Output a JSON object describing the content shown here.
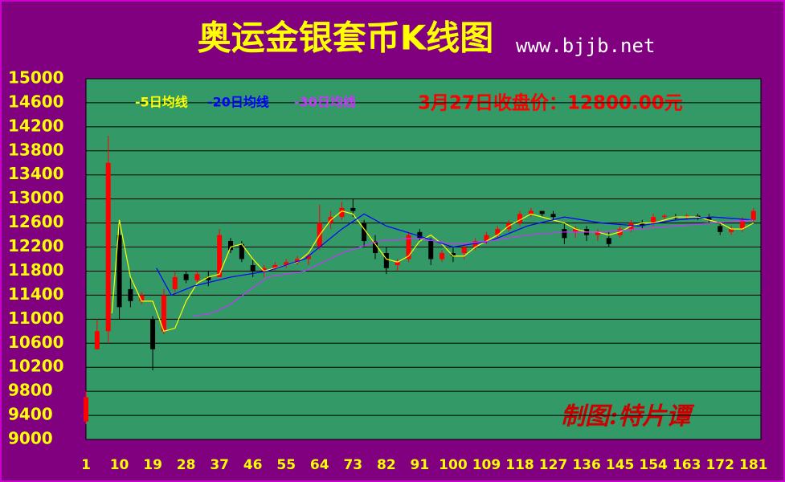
{
  "chart_data": {
    "type": "candlestick",
    "title": "奥运金银套币K线图",
    "subtitle": "www.bjjb.net",
    "annotation": "3月27日收盘价：12800.00元",
    "watermark": "制图:特片谭",
    "up_color": "#ff0000",
    "down_color": "#000000",
    "background": "#800080",
    "plot_color": "#339966",
    "grid": true,
    "xlim": [
      1,
      183
    ],
    "ylim": [
      9000,
      15000
    ],
    "xticks": [
      1,
      10,
      19,
      28,
      37,
      46,
      55,
      64,
      73,
      82,
      91,
      100,
      109,
      118,
      127,
      136,
      145,
      154,
      163,
      172,
      181
    ],
    "yticks": [
      9000,
      9400,
      9800,
      10200,
      10600,
      11000,
      11400,
      11800,
      12200,
      12600,
      13000,
      13400,
      13800,
      14200,
      14600,
      15000
    ],
    "candles": {
      "x": [
        1,
        4,
        7,
        10,
        13,
        16,
        19,
        22,
        25,
        28,
        31,
        34,
        37,
        40,
        43,
        46,
        49,
        52,
        55,
        58,
        61,
        64,
        67,
        70,
        73,
        76,
        79,
        82,
        85,
        88,
        91,
        94,
        97,
        100,
        103,
        106,
        109,
        112,
        115,
        118,
        121,
        124,
        127,
        130,
        133,
        136,
        139,
        142,
        145,
        148,
        151,
        154,
        157,
        160,
        163,
        166,
        169,
        172,
        175,
        178,
        181
      ],
      "open": [
        9300,
        10500,
        10800,
        12400,
        11500,
        11300,
        11000,
        10800,
        11500,
        11750,
        11650,
        11700,
        11700,
        12300,
        12250,
        11900,
        11800,
        11850,
        11900,
        11950,
        12000,
        12200,
        12600,
        12700,
        12850,
        12600,
        12300,
        12100,
        11900,
        12000,
        12450,
        12300,
        12000,
        12100,
        12100,
        12200,
        12300,
        12400,
        12500,
        12600,
        12750,
        12800,
        12750,
        12500,
        12450,
        12500,
        12400,
        12350,
        12400,
        12500,
        12600,
        12600,
        12700,
        12700,
        12700,
        12720,
        12700,
        12550,
        12450,
        12500,
        12650
      ],
      "high": [
        9800,
        11000,
        14050,
        12600,
        11700,
        11450,
        11050,
        11500,
        11800,
        11800,
        11800,
        11800,
        12500,
        12350,
        12300,
        12000,
        11900,
        11950,
        12000,
        12050,
        12100,
        12900,
        12800,
        12950,
        13000,
        12650,
        12400,
        12200,
        12000,
        12450,
        12500,
        12350,
        12150,
        12200,
        12250,
        12350,
        12450,
        12550,
        12650,
        12800,
        12850,
        12800,
        12800,
        12600,
        12550,
        12550,
        12500,
        12450,
        12550,
        12650,
        12650,
        12750,
        12750,
        12750,
        12750,
        12750,
        12750,
        12600,
        12550,
        12700,
        12850
      ],
      "low": [
        9250,
        10500,
        10600,
        11000,
        11200,
        11250,
        10150,
        10750,
        11450,
        11600,
        11600,
        11550,
        11700,
        12100,
        11950,
        11700,
        11700,
        11800,
        11850,
        11900,
        11900,
        12150,
        12500,
        12650,
        12700,
        12200,
        12000,
        11750,
        11800,
        11950,
        12300,
        11900,
        11950,
        11950,
        12000,
        12150,
        12250,
        12350,
        12450,
        12550,
        12700,
        12700,
        12650,
        12250,
        12350,
        12300,
        12300,
        12200,
        12350,
        12450,
        12500,
        12550,
        12650,
        12650,
        12650,
        12650,
        12600,
        12400,
        12400,
        12450,
        12600
      ],
      "close": [
        9700,
        10800,
        13600,
        11200,
        11300,
        11400,
        10500,
        11400,
        11700,
        11650,
        11750,
        11650,
        12400,
        12150,
        12000,
        11800,
        11850,
        11900,
        11950,
        12000,
        12050,
        12600,
        12700,
        12850,
        12800,
        12300,
        12100,
        11850,
        11950,
        12400,
        12350,
        12000,
        12100,
        12050,
        12200,
        12300,
        12400,
        12500,
        12600,
        12750,
        12800,
        12750,
        12700,
        12350,
        12500,
        12400,
        12450,
        12250,
        12500,
        12600,
        12550,
        12700,
        12720,
        12680,
        12720,
        12700,
        12650,
        12450,
        12500,
        12650,
        12800
      ]
    },
    "series": [
      {
        "name": "-5日均线",
        "color": "#ffff00",
        "x": [
          8,
          10,
          13,
          16,
          19,
          22,
          25,
          28,
          31,
          34,
          37,
          40,
          43,
          46,
          49,
          52,
          55,
          58,
          61,
          64,
          67,
          70,
          73,
          76,
          79,
          82,
          85,
          88,
          91,
          94,
          97,
          100,
          103,
          106,
          109,
          112,
          115,
          118,
          121,
          124,
          127,
          130,
          133,
          136,
          139,
          142,
          145,
          148,
          151,
          154,
          157,
          160,
          163,
          166,
          169,
          172,
          175,
          178,
          181
        ],
        "values": [
          11100,
          12650,
          11700,
          11300,
          11300,
          10800,
          10850,
          11300,
          11600,
          11700,
          11750,
          12200,
          12250,
          12000,
          11800,
          11850,
          11900,
          11950,
          12100,
          12400,
          12650,
          12800,
          12750,
          12500,
          12250,
          12000,
          11950,
          12050,
          12300,
          12400,
          12250,
          12050,
          12050,
          12200,
          12300,
          12400,
          12550,
          12650,
          12750,
          12700,
          12650,
          12600,
          12500,
          12450,
          12450,
          12400,
          12450,
          12550,
          12600,
          12600,
          12650,
          12700,
          12700,
          12700,
          12650,
          12600,
          12500,
          12500,
          12600
        ]
      },
      {
        "name": "-20日均线",
        "color": "#0000ff",
        "x": [
          20,
          24,
          30,
          40,
          50,
          60,
          70,
          76,
          82,
          90,
          100,
          110,
          120,
          130,
          140,
          150,
          160,
          170,
          181
        ],
        "values": [
          11850,
          11400,
          11550,
          11700,
          11800,
          12000,
          12500,
          12750,
          12550,
          12400,
          12200,
          12300,
          12550,
          12700,
          12600,
          12550,
          12650,
          12700,
          12650
        ]
      },
      {
        "name": "-30日均线",
        "color": "#cc33ff",
        "x": [
          30,
          35,
          40,
          50,
          60,
          70,
          80,
          90,
          100,
          110,
          120,
          130,
          140,
          150,
          160,
          170,
          181
        ],
        "values": [
          11050,
          11100,
          11250,
          11700,
          11800,
          12100,
          12300,
          12350,
          12250,
          12300,
          12400,
          12450,
          12450,
          12500,
          12550,
          12600,
          12650
        ]
      }
    ]
  }
}
